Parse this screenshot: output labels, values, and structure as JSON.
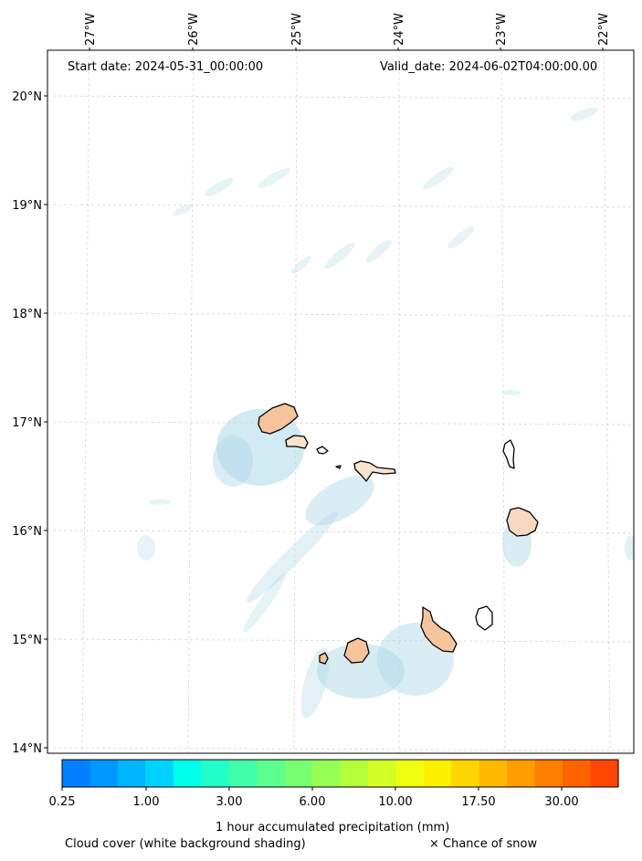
{
  "header": {
    "start_date": "Start date: 2024-05-31_00:00:00",
    "valid_date": "Valid_date: 2024-06-02T04:00:00.00"
  },
  "map": {
    "lon_labels": [
      "27°W",
      "26°W",
      "25°W",
      "24°W",
      "23°W",
      "22°W"
    ],
    "lat_labels": [
      "20°N",
      "19°N",
      "18°N",
      "17°N",
      "16°N",
      "15°N",
      "14°N"
    ],
    "islands": [
      "Santo Antão",
      "São Vicente",
      "Santa Luzia",
      "São Nicolau",
      "Sal",
      "Boa Vista",
      "Maio",
      "Santiago",
      "Fogo",
      "Brava"
    ],
    "precip_fill_color": "#f5c49a",
    "cloud_color": "#add8e6",
    "gridline_color": "#cccccc"
  },
  "colorbar": {
    "colors": [
      "#0080ff",
      "#0098ff",
      "#00b4ff",
      "#00d2ff",
      "#00ffe8",
      "#22ffc8",
      "#40ffaa",
      "#5cff8c",
      "#78ff70",
      "#96ff54",
      "#b4ff3c",
      "#d2ff24",
      "#eeff10",
      "#fff000",
      "#ffd400",
      "#ffb800",
      "#ff9c00",
      "#ff7e00",
      "#ff6200",
      "#ff4600"
    ],
    "tick_labels": [
      "0.25",
      "1.00",
      "3.00",
      "6.00",
      "10.00",
      "17.50",
      "30.00"
    ],
    "label": "1 hour accumulated precipitation (mm)"
  },
  "footer": {
    "cloud_note": "Cloud cover (white background shading)",
    "snow_note": "× Chance of snow"
  }
}
